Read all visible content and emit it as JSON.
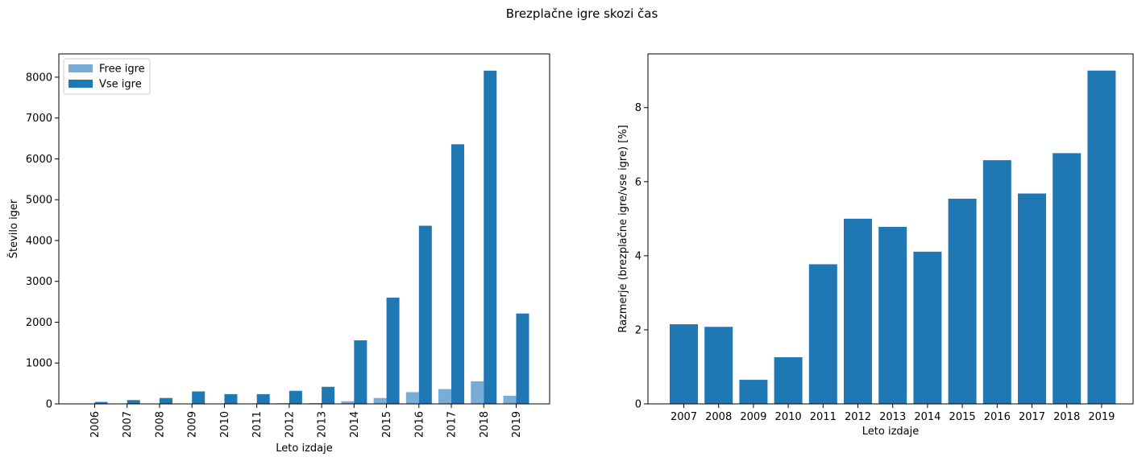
{
  "figure": {
    "title": "Brezplačne igre skozi čas"
  },
  "chart_data": [
    {
      "type": "bar",
      "categories": [
        "2006",
        "2007",
        "2008",
        "2009",
        "2010",
        "2011",
        "2012",
        "2013",
        "2014",
        "2015",
        "2016",
        "2017",
        "2018",
        "2019"
      ],
      "series": [
        {
          "name": "Free igre",
          "color": "#7aadd5",
          "values": [
            0,
            2,
            3,
            2,
            3,
            9,
            16,
            20,
            64,
            144,
            287,
            362,
            553,
            200
          ]
        },
        {
          "name": "Vse igre",
          "color": "#1f77b4",
          "values": [
            48,
            93,
            144,
            305,
            239,
            239,
            320,
            418,
            1556,
            2602,
            4362,
            6357,
            8160,
            2213
          ]
        }
      ],
      "xlabel": "Leto izdaje",
      "ylabel": "Število iger",
      "ylim": [
        0,
        8570
      ],
      "yticks": [
        0,
        1000,
        2000,
        3000,
        4000,
        5000,
        6000,
        7000,
        8000
      ],
      "tick_rotation": "vertical",
      "legend": "upper-left"
    },
    {
      "type": "bar",
      "categories": [
        "2007",
        "2008",
        "2009",
        "2010",
        "2011",
        "2012",
        "2013",
        "2014",
        "2015",
        "2016",
        "2017",
        "2018",
        "2019"
      ],
      "values": [
        2.15,
        2.08,
        0.65,
        1.26,
        3.77,
        5.0,
        4.78,
        4.11,
        5.54,
        6.58,
        5.68,
        6.77,
        9.0
      ],
      "color": "#1f77b4",
      "xlabel": "Leto izdaje",
      "ylabel": "Razmerje (brezplačne igre/vse igre) [%]",
      "ylim": [
        0,
        9.45
      ],
      "yticks": [
        0,
        2,
        4,
        6,
        8
      ]
    }
  ]
}
